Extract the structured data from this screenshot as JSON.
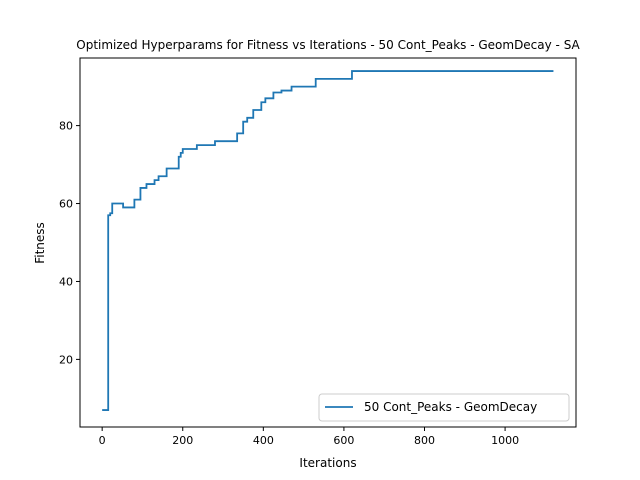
{
  "chart_data": {
    "type": "line",
    "title": "Optimized Hyperparams for Fitness vs Iterations - 50 Cont_Peaks - GeomDecay - SA",
    "xlabel": "Iterations",
    "ylabel": "Fitness",
    "xlim": [
      -55,
      1176
    ],
    "ylim": [
      2.65,
      97.35
    ],
    "xticks": [
      0,
      200,
      400,
      600,
      800,
      1000
    ],
    "yticks": [
      20,
      40,
      60,
      80
    ],
    "grid": false,
    "legend_position": "lower-right",
    "step": "post",
    "series": [
      {
        "name": "50 Cont_Peaks - GeomDecay",
        "color": "#1f77b4",
        "x": [
          0,
          15,
          20,
          25,
          52,
          80,
          95,
          110,
          130,
          140,
          160,
          190,
          195,
          200,
          235,
          280,
          335,
          350,
          360,
          375,
          395,
          405,
          425,
          445,
          470,
          530,
          620,
          1120
        ],
        "y": [
          7,
          57,
          57.5,
          60,
          59,
          61,
          64,
          65,
          66,
          67,
          69,
          72,
          73,
          74,
          75,
          76,
          78,
          81,
          82,
          84,
          86,
          87,
          88.5,
          89,
          90,
          92,
          94,
          94
        ]
      }
    ]
  }
}
